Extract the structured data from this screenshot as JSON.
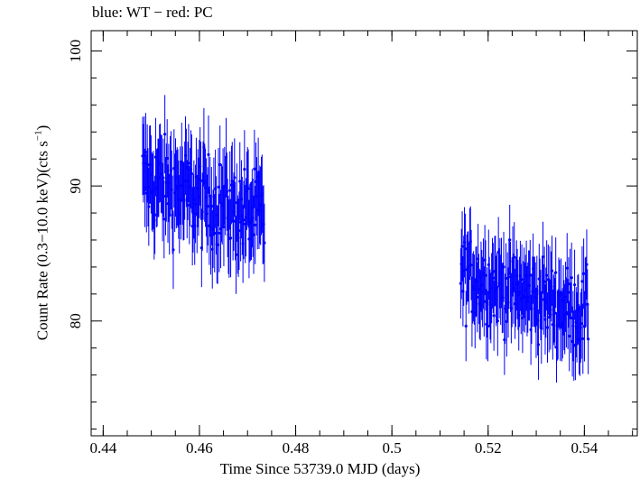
{
  "chart_data": {
    "type": "scatter",
    "title": "blue: WT − red: PC",
    "xlabel": "Time Since 53739.0 MJD (days)",
    "ylabel_main": "Count Rate (0.3−10.0 keV)(cts s",
    "ylabel_sup": "−1",
    "ylabel_end": ")",
    "xlim": [
      0.4375,
      0.551
    ],
    "ylim": [
      71.5,
      101.5
    ],
    "xticks": [
      0.44,
      0.46,
      0.48,
      0.5,
      0.52,
      0.54
    ],
    "xtick_labels": [
      "0.44",
      "0.46",
      "0.48",
      "0.5",
      "0.52",
      "0.54"
    ],
    "yticks": [
      80,
      90,
      100
    ],
    "ytick_labels": [
      "80",
      "90",
      "100"
    ],
    "grid": false,
    "series": [
      {
        "name": "WT",
        "color": "#0000ff",
        "segments": [
          {
            "x_start": 0.4482,
            "x_end": 0.4735,
            "n_points": 160,
            "mean_start": 90.5,
            "mean_end": 87.5,
            "scatter": 2.4,
            "err": 2.9
          },
          {
            "x_start": 0.5143,
            "x_end": 0.5408,
            "n_points": 170,
            "mean_start": 83.5,
            "mean_end": 80.5,
            "scatter": 2.1,
            "err": 2.6
          }
        ]
      }
    ]
  }
}
